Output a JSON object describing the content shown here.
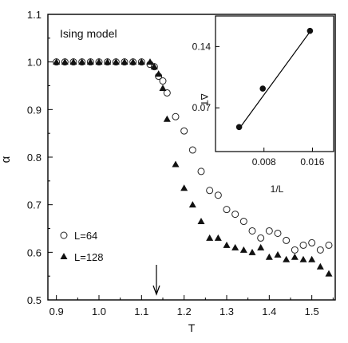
{
  "chart_data": [
    {
      "type": "scatter",
      "annotation": "Ising model",
      "xlabel": "T",
      "ylabel": "α",
      "xlim": [
        0.88,
        1.555
      ],
      "ylim": [
        0.5,
        1.1
      ],
      "xticks": [
        0.9,
        1.0,
        1.1,
        1.2,
        1.3,
        1.4,
        1.5
      ],
      "xtick_labels": [
        "0.9",
        "1.0",
        "1.1",
        "1.2",
        "1.3",
        "1.4",
        "1.5"
      ],
      "yticks": [
        0.5,
        0.6,
        0.7,
        0.8,
        0.9,
        1.0,
        1.1
      ],
      "ytick_labels": [
        "0.5",
        "0.6",
        "0.7",
        "0.8",
        "0.9",
        "1.0",
        "1.1"
      ],
      "legend_position": "bottom-left",
      "arrow_x": 1.135,
      "series": [
        {
          "name": "L=64",
          "marker": "open-circle",
          "x": [
            0.9,
            0.92,
            0.94,
            0.96,
            0.98,
            1.0,
            1.02,
            1.04,
            1.06,
            1.08,
            1.1,
            1.12,
            1.13,
            1.14,
            1.15,
            1.16,
            1.18,
            1.2,
            1.22,
            1.24,
            1.26,
            1.28,
            1.3,
            1.32,
            1.34,
            1.36,
            1.38,
            1.4,
            1.42,
            1.44,
            1.46,
            1.48,
            1.5,
            1.52,
            1.54
          ],
          "y": [
            1.0,
            1.0,
            1.0,
            1.0,
            1.0,
            1.0,
            1.0,
            1.0,
            1.0,
            1.0,
            1.0,
            0.995,
            0.99,
            0.97,
            0.96,
            0.935,
            0.885,
            0.855,
            0.815,
            0.77,
            0.73,
            0.72,
            0.69,
            0.68,
            0.665,
            0.645,
            0.63,
            0.645,
            0.64,
            0.625,
            0.605,
            0.615,
            0.62,
            0.605,
            0.615
          ]
        },
        {
          "name": "L=128",
          "marker": "filled-triangle",
          "x": [
            0.9,
            0.92,
            0.94,
            0.96,
            0.98,
            1.0,
            1.02,
            1.04,
            1.06,
            1.08,
            1.1,
            1.12,
            1.13,
            1.14,
            1.15,
            1.16,
            1.18,
            1.2,
            1.22,
            1.24,
            1.26,
            1.28,
            1.3,
            1.32,
            1.34,
            1.36,
            1.38,
            1.4,
            1.42,
            1.44,
            1.46,
            1.48,
            1.5,
            1.52,
            1.54
          ],
          "y": [
            1.0,
            1.0,
            1.0,
            1.0,
            1.0,
            1.0,
            1.0,
            1.0,
            1.0,
            1.0,
            1.0,
            1.0,
            0.99,
            0.975,
            0.945,
            0.88,
            0.785,
            0.735,
            0.7,
            0.665,
            0.63,
            0.63,
            0.615,
            0.61,
            0.605,
            0.6,
            0.61,
            0.59,
            0.595,
            0.585,
            0.59,
            0.585,
            0.585,
            0.57,
            0.555
          ]
        }
      ]
    },
    {
      "type": "line",
      "inset": true,
      "xlabel": "1/L",
      "ylabel": "ΔT",
      "xlim": [
        0.0,
        0.0195
      ],
      "ylim": [
        0.02,
        0.175
      ],
      "xticks": [
        0.008,
        0.016
      ],
      "xtick_labels": [
        "0.008",
        "0.016"
      ],
      "yticks": [
        0.07,
        0.14
      ],
      "ytick_labels": [
        "0.07",
        "0.14"
      ],
      "points": {
        "x": [
          0.0039,
          0.0078,
          0.0156
        ],
        "y": [
          0.048,
          0.092,
          0.158
        ]
      },
      "fit_line": {
        "x": [
          0.0039,
          0.0156
        ],
        "y": [
          0.046,
          0.157
        ]
      }
    }
  ]
}
